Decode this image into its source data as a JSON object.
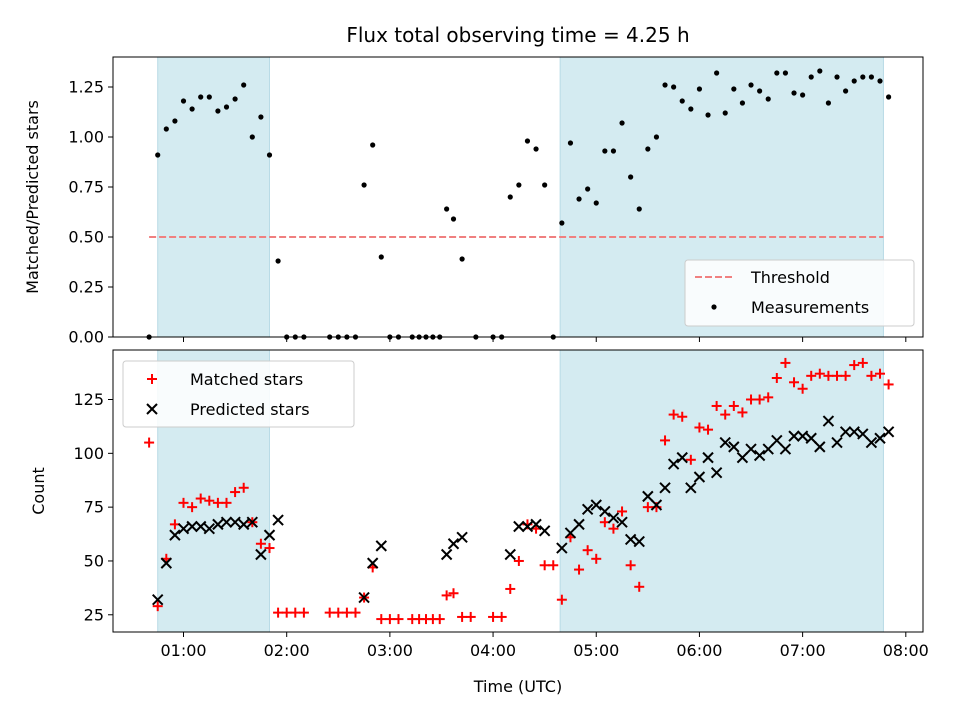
{
  "chart_data": [
    {
      "type": "scatter",
      "title": "Flux total observing time = 4.25 h",
      "ylabel": "Matched/Predicted stars",
      "xlabel": "",
      "xlim": [
        "00:19",
        "08:10"
      ],
      "ylim": [
        0,
        1.4
      ],
      "yticks": [
        0.0,
        0.25,
        0.5,
        0.75,
        1.0,
        1.25
      ],
      "ytick_labels": [
        "0.00",
        "0.25",
        "0.50",
        "0.75",
        "1.00",
        "1.25"
      ],
      "xticks": [
        "01:00",
        "02:00",
        "03:00",
        "04:00",
        "05:00",
        "06:00",
        "07:00",
        "08:00"
      ],
      "grid": false,
      "legend": {
        "placement": "lower-right",
        "entries": [
          "Threshold",
          "Measurements"
        ]
      },
      "shaded_intervals": [
        [
          "00:45",
          "01:50"
        ],
        [
          "04:39",
          "07:47"
        ]
      ],
      "threshold": {
        "name": "Threshold",
        "value": 0.5,
        "x_range": [
          "00:40",
          "07:47"
        ],
        "color": "#f08080"
      },
      "series": [
        {
          "name": "Measurements",
          "color": "#000000",
          "points": [
            [
              "00:40",
              0.0
            ],
            [
              "00:45",
              0.91
            ],
            [
              "00:50",
              1.04
            ],
            [
              "00:55",
              1.08
            ],
            [
              "01:00",
              1.18
            ],
            [
              "01:05",
              1.14
            ],
            [
              "01:10",
              1.2
            ],
            [
              "01:15",
              1.2
            ],
            [
              "01:20",
              1.13
            ],
            [
              "01:25",
              1.15
            ],
            [
              "01:30",
              1.19
            ],
            [
              "01:35",
              1.26
            ],
            [
              "01:40",
              1.0
            ],
            [
              "01:45",
              1.1
            ],
            [
              "01:50",
              0.91
            ],
            [
              "01:55",
              0.38
            ],
            [
              "02:00",
              0.0
            ],
            [
              "02:05",
              0.0
            ],
            [
              "02:10",
              0.0
            ],
            [
              "02:25",
              0.0
            ],
            [
              "02:30",
              0.0
            ],
            [
              "02:35",
              0.0
            ],
            [
              "02:40",
              0.0
            ],
            [
              "02:45",
              0.76
            ],
            [
              "02:50",
              0.96
            ],
            [
              "02:55",
              0.4
            ],
            [
              "03:00",
              0.0
            ],
            [
              "03:05",
              0.0
            ],
            [
              "03:13",
              0.0
            ],
            [
              "03:17",
              0.0
            ],
            [
              "03:21",
              0.0
            ],
            [
              "03:25",
              0.0
            ],
            [
              "03:29",
              0.0
            ],
            [
              "03:33",
              0.64
            ],
            [
              "03:37",
              0.59
            ],
            [
              "03:42",
              0.39
            ],
            [
              "03:50",
              0.0
            ],
            [
              "04:00",
              0.0
            ],
            [
              "04:05",
              0.0
            ],
            [
              "04:10",
              0.7
            ],
            [
              "04:15",
              0.76
            ],
            [
              "04:20",
              0.98
            ],
            [
              "04:25",
              0.94
            ],
            [
              "04:30",
              0.76
            ],
            [
              "04:35",
              0.0
            ],
            [
              "04:40",
              0.57
            ],
            [
              "04:45",
              0.97
            ],
            [
              "04:50",
              0.69
            ],
            [
              "04:55",
              0.74
            ],
            [
              "05:00",
              0.67
            ],
            [
              "05:05",
              0.93
            ],
            [
              "05:10",
              0.93
            ],
            [
              "05:15",
              1.07
            ],
            [
              "05:20",
              0.8
            ],
            [
              "05:25",
              0.64
            ],
            [
              "05:30",
              0.94
            ],
            [
              "05:35",
              1.0
            ],
            [
              "05:40",
              1.26
            ],
            [
              "05:45",
              1.25
            ],
            [
              "05:50",
              1.18
            ],
            [
              "05:55",
              1.14
            ],
            [
              "06:00",
              1.24
            ],
            [
              "06:05",
              1.11
            ],
            [
              "06:10",
              1.32
            ],
            [
              "06:15",
              1.12
            ],
            [
              "06:20",
              1.24
            ],
            [
              "06:25",
              1.17
            ],
            [
              "06:30",
              1.26
            ],
            [
              "06:35",
              1.23
            ],
            [
              "06:40",
              1.19
            ],
            [
              "06:45",
              1.32
            ],
            [
              "06:50",
              1.32
            ],
            [
              "06:55",
              1.22
            ],
            [
              "07:00",
              1.21
            ],
            [
              "07:05",
              1.3
            ],
            [
              "07:10",
              1.33
            ],
            [
              "07:15",
              1.17
            ],
            [
              "07:20",
              1.3
            ],
            [
              "07:25",
              1.23
            ],
            [
              "07:30",
              1.28
            ],
            [
              "07:35",
              1.3
            ],
            [
              "07:40",
              1.3
            ],
            [
              "07:45",
              1.28
            ],
            [
              "07:50",
              1.2
            ]
          ]
        }
      ]
    },
    {
      "type": "scatter",
      "title": "",
      "ylabel": "Count",
      "xlabel": "Time (UTC)",
      "xlim": [
        "00:19",
        "08:10"
      ],
      "ylim": [
        17,
        148
      ],
      "yticks": [
        25,
        50,
        75,
        100,
        125
      ],
      "ytick_labels": [
        "25",
        "50",
        "75",
        "100",
        "125"
      ],
      "xticks": [
        "01:00",
        "02:00",
        "03:00",
        "04:00",
        "05:00",
        "06:00",
        "07:00",
        "08:00"
      ],
      "xtick_labels": [
        "01:00",
        "02:00",
        "03:00",
        "04:00",
        "05:00",
        "06:00",
        "07:00",
        "08:00"
      ],
      "grid": false,
      "legend": {
        "placement": "upper-left",
        "entries": [
          "Matched stars",
          "Predicted stars"
        ]
      },
      "shaded_intervals": [
        [
          "00:45",
          "01:50"
        ],
        [
          "04:39",
          "07:47"
        ]
      ],
      "series": [
        {
          "name": "Matched stars",
          "marker": "plus",
          "color": "#ff0000",
          "points": [
            [
              "00:40",
              105
            ],
            [
              "00:45",
              29
            ],
            [
              "00:50",
              51
            ],
            [
              "00:55",
              67
            ],
            [
              "01:00",
              77
            ],
            [
              "01:05",
              75
            ],
            [
              "01:10",
              79
            ],
            [
              "01:15",
              78
            ],
            [
              "01:20",
              77
            ],
            [
              "01:25",
              77
            ],
            [
              "01:30",
              82
            ],
            [
              "01:35",
              84
            ],
            [
              "01:40",
              68
            ],
            [
              "01:45",
              58
            ],
            [
              "01:50",
              56
            ],
            [
              "01:55",
              26
            ],
            [
              "02:00",
              26
            ],
            [
              "02:05",
              26
            ],
            [
              "02:10",
              26
            ],
            [
              "02:25",
              26
            ],
            [
              "02:30",
              26
            ],
            [
              "02:35",
              26
            ],
            [
              "02:40",
              26
            ],
            [
              "02:45",
              33
            ],
            [
              "02:50",
              47
            ],
            [
              "02:55",
              23
            ],
            [
              "03:00",
              23
            ],
            [
              "03:05",
              23
            ],
            [
              "03:13",
              23
            ],
            [
              "03:17",
              23
            ],
            [
              "03:21",
              23
            ],
            [
              "03:25",
              23
            ],
            [
              "03:29",
              23
            ],
            [
              "03:33",
              34
            ],
            [
              "03:37",
              35
            ],
            [
              "03:42",
              24
            ],
            [
              "03:47",
              24
            ],
            [
              "04:00",
              24
            ],
            [
              "04:05",
              24
            ],
            [
              "04:10",
              37
            ],
            [
              "04:15",
              50
            ],
            [
              "04:20",
              67
            ],
            [
              "04:25",
              65
            ],
            [
              "04:30",
              48
            ],
            [
              "04:35",
              48
            ],
            [
              "04:40",
              32
            ],
            [
              "04:45",
              61
            ],
            [
              "04:50",
              46
            ],
            [
              "04:55",
              55
            ],
            [
              "05:00",
              51
            ],
            [
              "05:05",
              68
            ],
            [
              "05:10",
              65
            ],
            [
              "05:15",
              73
            ],
            [
              "05:20",
              48
            ],
            [
              "05:25",
              38
            ],
            [
              "05:30",
              75
            ],
            [
              "05:35",
              75
            ],
            [
              "05:40",
              106
            ],
            [
              "05:45",
              118
            ],
            [
              "05:50",
              117
            ],
            [
              "05:55",
              97
            ],
            [
              "06:00",
              112
            ],
            [
              "06:05",
              111
            ],
            [
              "06:10",
              122
            ],
            [
              "06:15",
              118
            ],
            [
              "06:20",
              122
            ],
            [
              "06:25",
              119
            ],
            [
              "06:30",
              125
            ],
            [
              "06:35",
              125
            ],
            [
              "06:40",
              126
            ],
            [
              "06:45",
              135
            ],
            [
              "06:50",
              142
            ],
            [
              "06:55",
              133
            ],
            [
              "07:00",
              130
            ],
            [
              "07:05",
              136
            ],
            [
              "07:10",
              137
            ],
            [
              "07:15",
              136
            ],
            [
              "07:20",
              136
            ],
            [
              "07:25",
              136
            ],
            [
              "07:30",
              141
            ],
            [
              "07:35",
              142
            ],
            [
              "07:40",
              136
            ],
            [
              "07:45",
              137
            ],
            [
              "07:50",
              132
            ]
          ]
        },
        {
          "name": "Predicted stars",
          "marker": "x",
          "color": "#000000",
          "points": [
            [
              "00:45",
              32
            ],
            [
              "00:50",
              49
            ],
            [
              "00:55",
              62
            ],
            [
              "01:00",
              65
            ],
            [
              "01:05",
              66
            ],
            [
              "01:10",
              66
            ],
            [
              "01:15",
              65
            ],
            [
              "01:20",
              67
            ],
            [
              "01:25",
              68
            ],
            [
              "01:30",
              68
            ],
            [
              "01:35",
              67
            ],
            [
              "01:40",
              68
            ],
            [
              "01:45",
              53
            ],
            [
              "01:50",
              62
            ],
            [
              "01:55",
              69
            ],
            [
              "02:45",
              33
            ],
            [
              "02:50",
              49
            ],
            [
              "02:55",
              57
            ],
            [
              "03:33",
              53
            ],
            [
              "03:37",
              58
            ],
            [
              "03:42",
              61
            ],
            [
              "04:10",
              53
            ],
            [
              "04:15",
              66
            ],
            [
              "04:20",
              66
            ],
            [
              "04:25",
              67
            ],
            [
              "04:30",
              64
            ],
            [
              "04:40",
              56
            ],
            [
              "04:45",
              63
            ],
            [
              "04:50",
              67
            ],
            [
              "04:55",
              74
            ],
            [
              "05:00",
              76
            ],
            [
              "05:05",
              73
            ],
            [
              "05:10",
              70
            ],
            [
              "05:15",
              68
            ],
            [
              "05:20",
              60
            ],
            [
              "05:25",
              59
            ],
            [
              "05:30",
              80
            ],
            [
              "05:35",
              76
            ],
            [
              "05:40",
              84
            ],
            [
              "05:45",
              95
            ],
            [
              "05:50",
              98
            ],
            [
              "05:55",
              84
            ],
            [
              "06:00",
              89
            ],
            [
              "06:05",
              98
            ],
            [
              "06:10",
              91
            ],
            [
              "06:15",
              105
            ],
            [
              "06:20",
              103
            ],
            [
              "06:25",
              98
            ],
            [
              "06:30",
              102
            ],
            [
              "06:35",
              99
            ],
            [
              "06:40",
              102
            ],
            [
              "06:45",
              106
            ],
            [
              "06:50",
              102
            ],
            [
              "06:55",
              108
            ],
            [
              "07:00",
              108
            ],
            [
              "07:05",
              107
            ],
            [
              "07:10",
              103
            ],
            [
              "07:15",
              115
            ],
            [
              "07:20",
              105
            ],
            [
              "07:25",
              110
            ],
            [
              "07:30",
              110
            ],
            [
              "07:35",
              109
            ],
            [
              "07:40",
              105
            ],
            [
              "07:45",
              107
            ],
            [
              "07:50",
              110
            ]
          ]
        }
      ]
    }
  ],
  "colors": {
    "shade": "#d4ebf1",
    "shade_edge": "#b9dbe6",
    "threshold": "#f08080",
    "matched": "#ff0000",
    "predicted": "#000000",
    "measure": "#000000"
  }
}
